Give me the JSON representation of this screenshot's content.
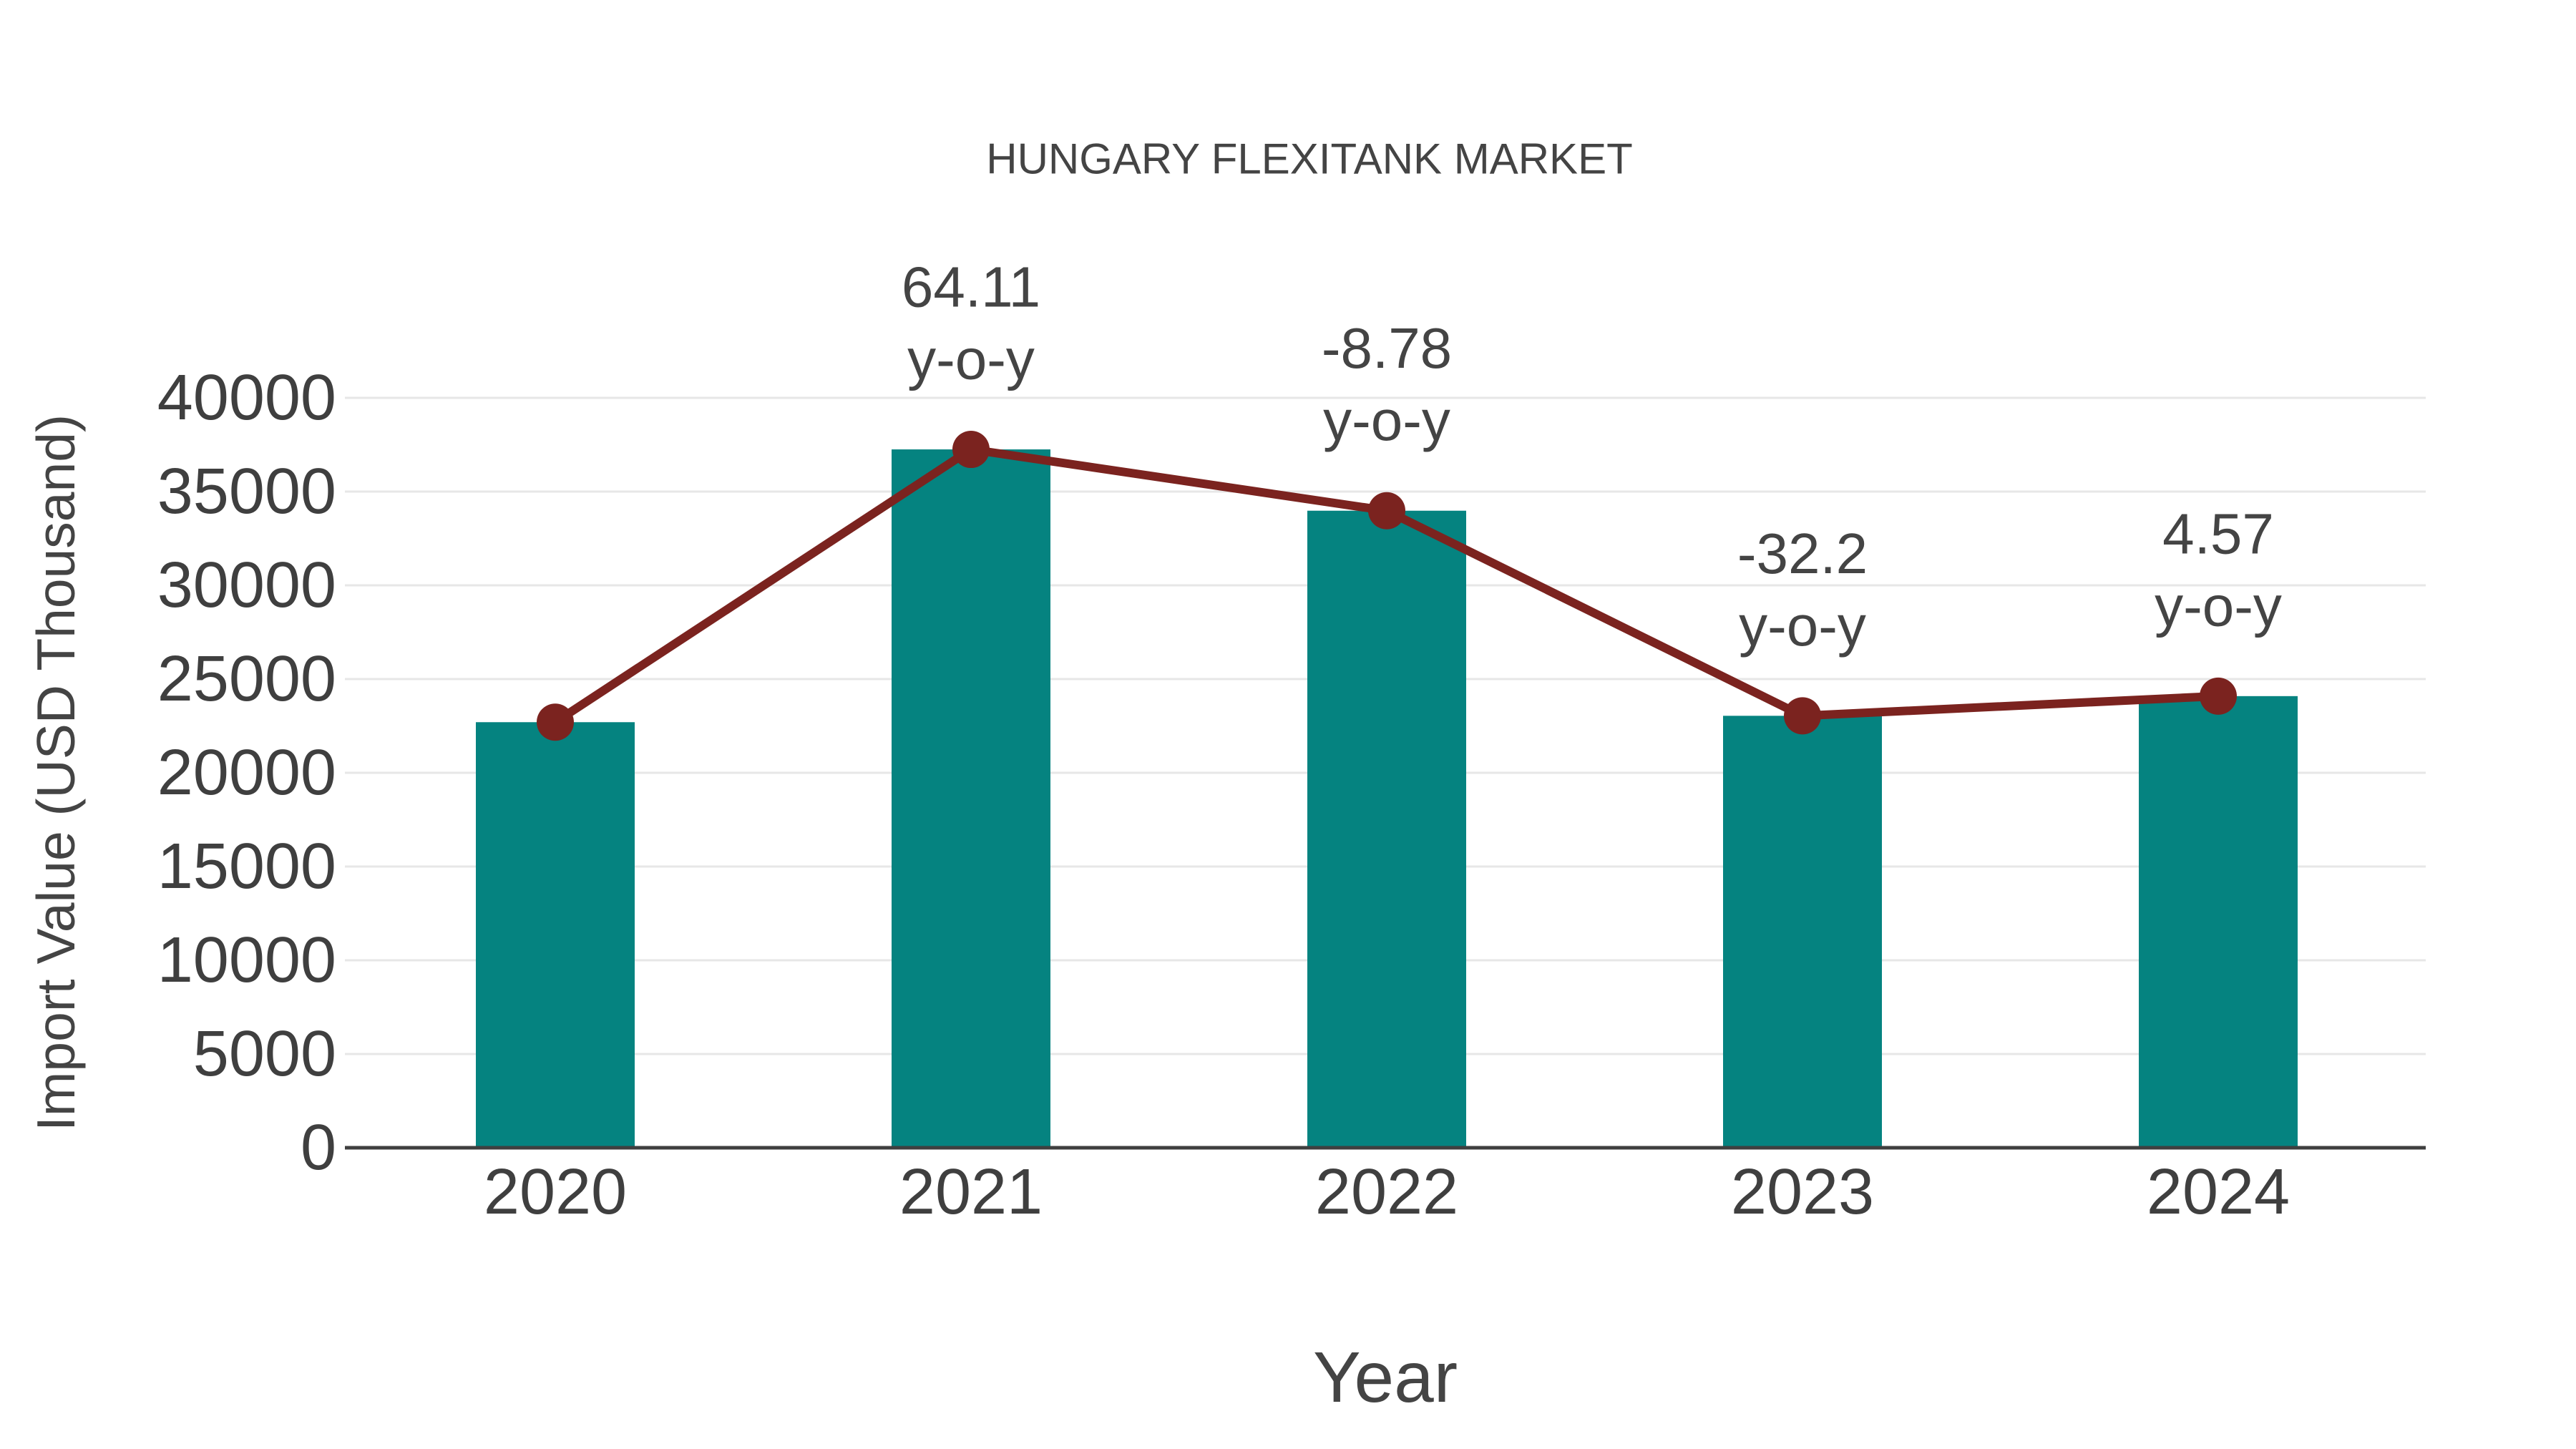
{
  "title": "HUNGARY FLEXITANK MARKET",
  "colors": {
    "bar": "#058380",
    "line": "#7b231f",
    "marker": "#7b231f",
    "text": "#444444",
    "tick_text": "#3f3f3f",
    "grid": "#e7e7e7",
    "axis_line": "#3f3f3f",
    "background": "#ffffff"
  },
  "chart_data": {
    "type": "bar",
    "title": "HUNGARY FLEXITANK MARKET",
    "xlabel": "Year",
    "ylabel": "Import Value (USD Thousand)",
    "categories": [
      "2020",
      "2021",
      "2022",
      "2023",
      "2024"
    ],
    "series": [
      {
        "name": "Import Value bars",
        "type": "bar",
        "values": [
          22700,
          37250,
          33980,
          23040,
          24090
        ]
      },
      {
        "name": "Import Value trend line",
        "type": "line",
        "values": [
          22700,
          37250,
          33980,
          23040,
          24090
        ]
      }
    ],
    "annotations": [
      {
        "category_index": 1,
        "lines": [
          "64.11",
          "y-o-y"
        ]
      },
      {
        "category_index": 2,
        "lines": [
          "-8.78",
          "y-o-y"
        ]
      },
      {
        "category_index": 3,
        "lines": [
          "-32.2",
          "y-o-y"
        ]
      },
      {
        "category_index": 4,
        "lines": [
          "4.57",
          "y-o-y"
        ]
      }
    ],
    "ylim": [
      0,
      40000
    ],
    "yticks": [
      0,
      5000,
      10000,
      15000,
      20000,
      25000,
      30000,
      35000,
      40000
    ],
    "grid": true,
    "legend": false
  }
}
